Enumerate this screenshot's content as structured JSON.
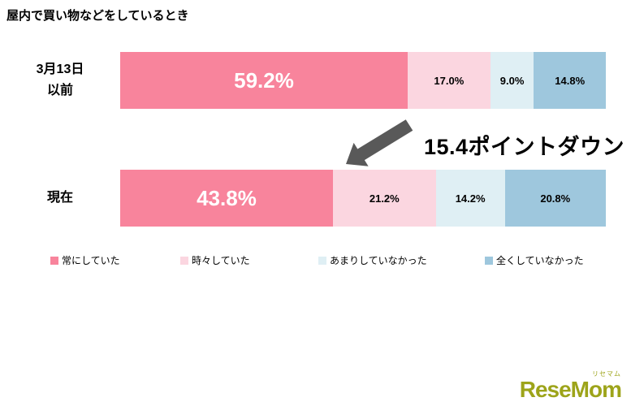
{
  "title": "屋内で買い物などをしているとき",
  "chart_data": {
    "type": "bar",
    "subtype": "horizontal-stacked",
    "title": "屋内で買い物などをしているとき",
    "categories": [
      "常にしていた",
      "時々していた",
      "あまりしていなかった",
      "全くしていなかった"
    ],
    "colors": [
      "#F8849C",
      "#FBD6E0",
      "#DFEFF4",
      "#9EC7DD"
    ],
    "rows": [
      {
        "label": "3月13日\n以前",
        "values": [
          59.2,
          17.0,
          9.0,
          14.8
        ]
      },
      {
        "label": "現在",
        "values": [
          43.8,
          21.2,
          14.2,
          20.8
        ]
      }
    ],
    "value_suffix": "%",
    "xlim": [
      0,
      100
    ],
    "legend_position": "bottom",
    "annotation": "15.4ポイントダウン"
  },
  "annotation": {
    "text": "15.4ポイントダウン",
    "arrow_color": "#595959"
  },
  "logo": {
    "text": "ReseMom",
    "subtext": "リセマム",
    "color": "#9DA41A"
  }
}
